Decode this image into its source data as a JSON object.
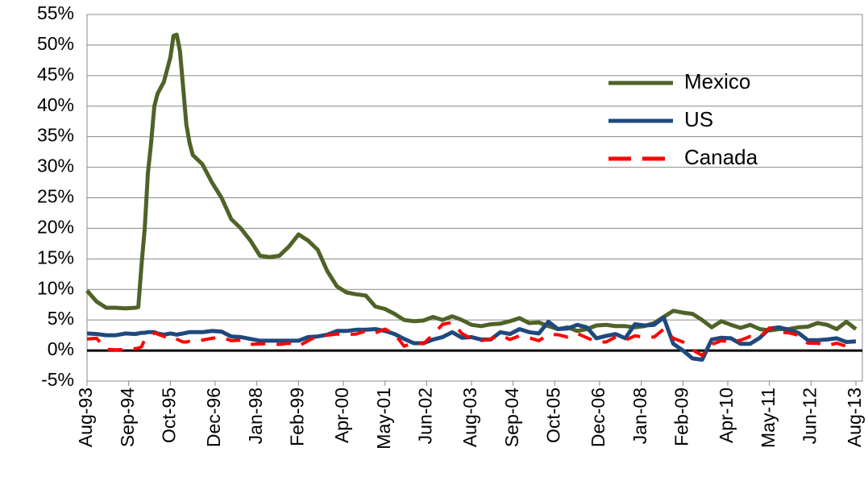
{
  "chart_data": {
    "type": "line",
    "x": [
      "1993-08",
      "1993-11",
      "1994-02",
      "1994-05",
      "1994-08",
      "1994-11",
      "1994-12",
      "1995-01",
      "1995-02",
      "1995-03",
      "1995-04",
      "1995-05",
      "1995-06",
      "1995-08",
      "1995-10",
      "1995-11",
      "1995-12",
      "1996-01",
      "1996-02",
      "1996-03",
      "1996-04",
      "1996-05",
      "1996-08",
      "1996-11",
      "1997-02",
      "1997-05",
      "1997-08",
      "1997-11",
      "1998-02",
      "1998-05",
      "1998-08",
      "1998-11",
      "1999-02",
      "1999-05",
      "1999-08",
      "1999-11",
      "2000-02",
      "2000-05",
      "2000-08",
      "2000-11",
      "2001-02",
      "2001-05",
      "2001-08",
      "2001-11",
      "2002-02",
      "2002-05",
      "2002-08",
      "2002-11",
      "2003-02",
      "2003-05",
      "2003-08",
      "2003-11",
      "2004-02",
      "2004-05",
      "2004-08",
      "2004-11",
      "2005-02",
      "2005-05",
      "2005-08",
      "2005-11",
      "2006-02",
      "2006-05",
      "2006-08",
      "2006-11",
      "2007-02",
      "2007-05",
      "2007-08",
      "2007-11",
      "2008-02",
      "2008-05",
      "2008-08",
      "2008-11",
      "2009-02",
      "2009-05",
      "2009-08",
      "2009-11",
      "2010-02",
      "2010-05",
      "2010-08",
      "2010-11",
      "2011-02",
      "2011-05",
      "2011-08",
      "2011-11",
      "2012-02",
      "2012-05",
      "2012-08",
      "2012-11",
      "2013-02",
      "2013-05",
      "2013-08"
    ],
    "series": [
      {
        "name": "Mexico",
        "color": "#4f6228",
        "values": [
          9.8,
          8,
          7,
          7,
          6.9,
          7,
          7.1,
          14,
          20,
          29,
          34,
          40,
          42,
          44,
          48,
          51.5,
          51.7,
          49,
          43,
          37,
          34,
          32,
          30.5,
          27.5,
          25,
          21.5,
          20,
          18,
          15.5,
          15.3,
          15.5,
          17,
          19,
          18,
          16.5,
          13,
          10.5,
          9.5,
          9.2,
          9,
          7.2,
          6.8,
          6,
          5,
          4.8,
          4.9,
          5.5,
          5,
          5.6,
          5,
          4.2,
          4,
          4.3,
          4.4,
          4.8,
          5.3,
          4.5,
          4.6,
          4,
          3.5,
          3.8,
          3.2,
          3.5,
          4.1,
          4.2,
          4,
          4,
          3.8,
          4,
          4.5,
          5.5,
          6.5,
          6.2,
          6,
          5,
          3.8,
          4.8,
          4.2,
          3.7,
          4.2,
          3.5,
          3.3,
          3.5,
          3.5,
          3.8,
          3.9,
          4.5,
          4.2,
          3.5,
          4.7,
          3.5
        ]
      },
      {
        "name": "US",
        "color": "#1f497d",
        "values": [
          2.8,
          2.7,
          2.5,
          2.5,
          2.8,
          2.7,
          2.8,
          2.9,
          2.9,
          3,
          3,
          3,
          2.8,
          2.6,
          2.8,
          2.7,
          2.6,
          2.7,
          2.8,
          2.9,
          3,
          3,
          3,
          3.2,
          3.1,
          2.3,
          2.2,
          1.9,
          1.6,
          1.6,
          1.6,
          1.6,
          1.6,
          2.2,
          2.3,
          2.6,
          3.2,
          3.2,
          3.4,
          3.4,
          3.5,
          3.2,
          2.7,
          1.9,
          1.2,
          1.2,
          1.8,
          2.2,
          3,
          2.1,
          2.2,
          1.8,
          1.8,
          3,
          2.7,
          3.5,
          3,
          2.8,
          4.7,
          3.5,
          3.6,
          4.2,
          3.8,
          2,
          2.4,
          2.7,
          2,
          4.3,
          4.1,
          4.2,
          5.4,
          1.1,
          0,
          -1.3,
          -1.5,
          1.8,
          2.1,
          2,
          1.1,
          1.1,
          2.1,
          3.6,
          3.8,
          3.4,
          2.9,
          1.7,
          1.7,
          1.8,
          2,
          1.4,
          1.5
        ]
      },
      {
        "name": "Canada",
        "color": "#ff0000",
        "values": [
          1.9,
          2,
          0.2,
          0.1,
          0.2,
          0.3,
          0.4,
          0.6,
          1.8,
          2.2,
          2.5,
          2.9,
          2.7,
          2.3,
          2.2,
          2.3,
          1.9,
          1.6,
          1.4,
          1.4,
          1.5,
          1.4,
          1.7,
          2,
          2.2,
          1.6,
          1.7,
          1,
          1.1,
          1.1,
          1,
          1.2,
          0.7,
          1.6,
          2.4,
          2.5,
          2.7,
          2.6,
          2.7,
          3.2,
          2.9,
          3.5,
          2.7,
          0.7,
          1.3,
          1.1,
          2.6,
          4.3,
          4.6,
          2.8,
          1.9,
          1.6,
          1.9,
          2.5,
          1.8,
          2.4,
          2.1,
          1.6,
          2.6,
          2.6,
          2.2,
          2.8,
          2.1,
          1.4,
          1.4,
          2.2,
          1.7,
          2.4,
          2.2,
          2.2,
          3.5,
          2,
          1.4,
          0.1,
          -0.8,
          1,
          1.6,
          1.4,
          1.7,
          2.3,
          2.2,
          3.7,
          3,
          2.9,
          2.5,
          1.2,
          1.2,
          0.8,
          1.2,
          0.7,
          1.1
        ]
      }
    ],
    "ylim": [
      -5,
      55
    ],
    "yticks": [
      {
        "value": -5,
        "label": "-5%"
      },
      {
        "value": 0,
        "label": "0%"
      },
      {
        "value": 5,
        "label": "5%"
      },
      {
        "value": 10,
        "label": "10%"
      },
      {
        "value": 15,
        "label": "15%"
      },
      {
        "value": 20,
        "label": "20%"
      },
      {
        "value": 25,
        "label": "25%"
      },
      {
        "value": 30,
        "label": "30%"
      },
      {
        "value": 35,
        "label": "35%"
      },
      {
        "value": 40,
        "label": "40%"
      },
      {
        "value": 45,
        "label": "45%"
      },
      {
        "value": 50,
        "label": "50%"
      },
      {
        "value": 55,
        "label": "55%"
      }
    ],
    "xlim": [
      "1993-08",
      "2013-08"
    ],
    "xticks": [
      {
        "value": "1993-08",
        "label": "Aug-93"
      },
      {
        "value": "1994-09",
        "label": "Sep-94"
      },
      {
        "value": "1995-10",
        "label": "Oct-95"
      },
      {
        "value": "1996-12",
        "label": "Dec-96"
      },
      {
        "value": "1998-01",
        "label": "Jan-98"
      },
      {
        "value": "1999-02",
        "label": "Feb-99"
      },
      {
        "value": "2000-04",
        "label": "Apr-00"
      },
      {
        "value": "2001-05",
        "label": "May-01"
      },
      {
        "value": "2002-06",
        "label": "Jun-02"
      },
      {
        "value": "2003-08",
        "label": "Aug-03"
      },
      {
        "value": "2004-09",
        "label": "Sep-04"
      },
      {
        "value": "2005-10",
        "label": "Oct-05"
      },
      {
        "value": "2006-12",
        "label": "Dec-06"
      },
      {
        "value": "2008-01",
        "label": "Jan-08"
      },
      {
        "value": "2009-02",
        "label": "Feb-09"
      },
      {
        "value": "2010-04",
        "label": "Apr-10"
      },
      {
        "value": "2011-05",
        "label": "May-11"
      },
      {
        "value": "2012-06",
        "label": "Jun-12"
      },
      {
        "value": "2013-08",
        "label": "Aug-13"
      }
    ],
    "grid": true
  }
}
